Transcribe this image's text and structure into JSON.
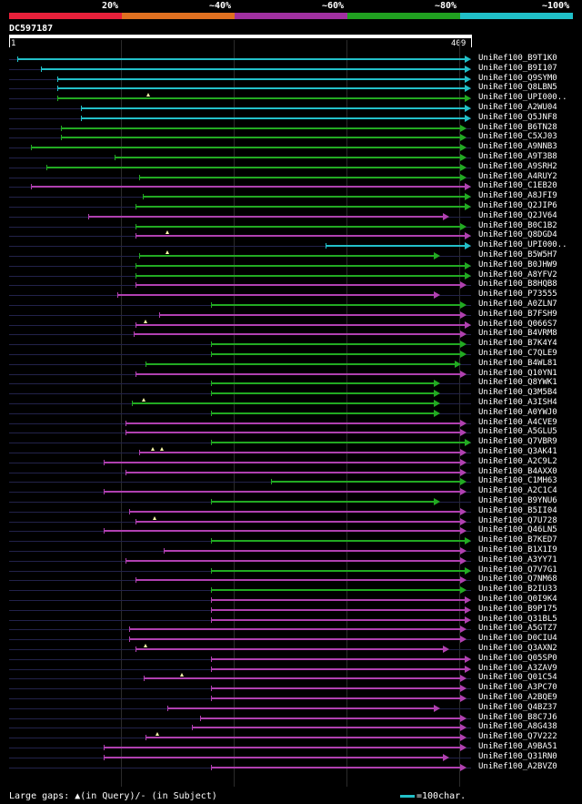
{
  "legend": {
    "segments": [
      {
        "label": "20%",
        "color": "#e8203a"
      },
      {
        "label": "~40%",
        "color": "#e07020"
      },
      {
        "label": "~60%",
        "color": "#a030a0"
      },
      {
        "label": "~80%",
        "color": "#20a020"
      },
      {
        "label": "~100%",
        "color": "#20c0c8"
      }
    ]
  },
  "query": {
    "id": "DC597187",
    "start_label": "1",
    "end_label": "409",
    "length": 409
  },
  "colors": {
    "cyan": "#22c0c8",
    "green": "#22aa22",
    "purple": "#b040b0",
    "dash": "#22224a"
  },
  "hits": [
    {
      "name": "UniRef100_B9T1K0",
      "start": 7,
      "end": 409,
      "color": "cyan"
    },
    {
      "name": "UniRef100_B9I107",
      "start": 28,
      "end": 409,
      "color": "cyan"
    },
    {
      "name": "UniRef100_Q9SYM0",
      "start": 43,
      "end": 409,
      "color": "cyan"
    },
    {
      "name": "UniRef100_Q8LBN5",
      "start": 43,
      "end": 409,
      "color": "cyan"
    },
    {
      "name": "UniRef100_UPI000..",
      "start": 43,
      "end": 409,
      "color": "green",
      "gaps": [
        123
      ]
    },
    {
      "name": "UniRef100_A2WU04",
      "start": 64,
      "end": 409,
      "color": "cyan"
    },
    {
      "name": "UniRef100_Q5JNF8",
      "start": 64,
      "end": 409,
      "color": "cyan"
    },
    {
      "name": "UniRef100_B6TN28",
      "start": 46,
      "end": 405,
      "color": "green"
    },
    {
      "name": "UniRef100_C5XJ03",
      "start": 46,
      "end": 405,
      "color": "green"
    },
    {
      "name": "UniRef100_A9NNB3",
      "start": 19,
      "end": 405,
      "color": "green"
    },
    {
      "name": "UniRef100_A9T3B8",
      "start": 93,
      "end": 405,
      "color": "green"
    },
    {
      "name": "UniRef100_A9SRH2",
      "start": 33,
      "end": 405,
      "color": "green"
    },
    {
      "name": "UniRef100_A4RUY2",
      "start": 115,
      "end": 405,
      "color": "green"
    },
    {
      "name": "UniRef100_C1EB20",
      "start": 19,
      "end": 409,
      "color": "purple"
    },
    {
      "name": "UniRef100_A8JFI9",
      "start": 118,
      "end": 409,
      "color": "green"
    },
    {
      "name": "UniRef100_Q2JIP6",
      "start": 112,
      "end": 409,
      "color": "green"
    },
    {
      "name": "UniRef100_Q2JV64",
      "start": 70,
      "end": 390,
      "color": "purple"
    },
    {
      "name": "UniRef100_B0C1B2",
      "start": 112,
      "end": 405,
      "color": "green"
    },
    {
      "name": "UniRef100_Q8DGD4",
      "start": 112,
      "end": 409,
      "color": "purple",
      "gaps": [
        140
      ]
    },
    {
      "name": "UniRef100_UPI000..",
      "start": 280,
      "end": 409,
      "color": "cyan"
    },
    {
      "name": "UniRef100_B5W5H7",
      "start": 115,
      "end": 382,
      "color": "green",
      "gaps": [
        140
      ]
    },
    {
      "name": "UniRef100_B0JHW9",
      "start": 112,
      "end": 409,
      "color": "green"
    },
    {
      "name": "UniRef100_A8YFV2",
      "start": 112,
      "end": 409,
      "color": "green"
    },
    {
      "name": "UniRef100_B8HQB8",
      "start": 112,
      "end": 405,
      "color": "purple"
    },
    {
      "name": "UniRef100_P73555",
      "start": 96,
      "end": 382,
      "color": "purple"
    },
    {
      "name": "UniRef100_A0ZLN7",
      "start": 179,
      "end": 405,
      "color": "green"
    },
    {
      "name": "UniRef100_B7FSH9",
      "start": 133,
      "end": 405,
      "color": "purple"
    },
    {
      "name": "UniRef100_Q066S7",
      "start": 112,
      "end": 409,
      "color": "purple",
      "gaps": [
        121
      ]
    },
    {
      "name": "UniRef100_B4VRM8",
      "start": 110,
      "end": 405,
      "color": "purple"
    },
    {
      "name": "UniRef100_B7K4Y4",
      "start": 179,
      "end": 405,
      "color": "green"
    },
    {
      "name": "UniRef100_C7QLE9",
      "start": 179,
      "end": 405,
      "color": "green"
    },
    {
      "name": "UniRef100_B4WL81",
      "start": 121,
      "end": 400,
      "color": "green"
    },
    {
      "name": "UniRef100_Q10YN1",
      "start": 112,
      "end": 405,
      "color": "purple"
    },
    {
      "name": "UniRef100_Q8YWK1",
      "start": 179,
      "end": 382,
      "color": "green"
    },
    {
      "name": "UniRef100_Q3M5B4",
      "start": 179,
      "end": 382,
      "color": "green"
    },
    {
      "name": "UniRef100_A3ISH4",
      "start": 109,
      "end": 382,
      "color": "green",
      "gaps": [
        119
      ]
    },
    {
      "name": "UniRef100_A0YWJ0",
      "start": 179,
      "end": 382,
      "color": "green"
    },
    {
      "name": "UniRef100_A4CVE9",
      "start": 103,
      "end": 405,
      "color": "purple"
    },
    {
      "name": "UniRef100_A5GLU5",
      "start": 103,
      "end": 405,
      "color": "purple"
    },
    {
      "name": "UniRef100_Q7VBR9",
      "start": 179,
      "end": 409,
      "color": "green"
    },
    {
      "name": "UniRef100_Q3AK41",
      "start": 115,
      "end": 405,
      "color": "purple",
      "gaps": [
        127,
        135
      ]
    },
    {
      "name": "UniRef100_A2C9L2",
      "start": 84,
      "end": 405,
      "color": "purple"
    },
    {
      "name": "UniRef100_B4AXX0",
      "start": 103,
      "end": 405,
      "color": "purple"
    },
    {
      "name": "UniRef100_C1MH63",
      "start": 232,
      "end": 405,
      "color": "green"
    },
    {
      "name": "UniRef100_A2C1C4",
      "start": 84,
      "end": 405,
      "color": "purple"
    },
    {
      "name": "UniRef100_B9YNU6",
      "start": 179,
      "end": 382,
      "color": "green"
    },
    {
      "name": "UniRef100_B5II04",
      "start": 106,
      "end": 405,
      "color": "purple"
    },
    {
      "name": "UniRef100_Q7U728",
      "start": 112,
      "end": 405,
      "color": "purple",
      "gaps": [
        129
      ]
    },
    {
      "name": "UniRef100_Q46LN5",
      "start": 84,
      "end": 405,
      "color": "purple"
    },
    {
      "name": "UniRef100_B7KED7",
      "start": 179,
      "end": 409,
      "color": "green"
    },
    {
      "name": "UniRef100_B1X1I9",
      "start": 137,
      "end": 405,
      "color": "purple"
    },
    {
      "name": "UniRef100_A3YY71",
      "start": 103,
      "end": 405,
      "color": "purple"
    },
    {
      "name": "UniRef100_Q7V7G1",
      "start": 179,
      "end": 409,
      "color": "green"
    },
    {
      "name": "UniRef100_Q7NM68",
      "start": 112,
      "end": 405,
      "color": "purple"
    },
    {
      "name": "UniRef100_B2IU33",
      "start": 179,
      "end": 405,
      "color": "green"
    },
    {
      "name": "UniRef100_Q0I9K4",
      "start": 179,
      "end": 409,
      "color": "purple"
    },
    {
      "name": "UniRef100_B9P175",
      "start": 179,
      "end": 409,
      "color": "purple"
    },
    {
      "name": "UniRef100_Q31BL5",
      "start": 179,
      "end": 409,
      "color": "purple"
    },
    {
      "name": "UniRef100_A5GTZ7",
      "start": 106,
      "end": 405,
      "color": "purple"
    },
    {
      "name": "UniRef100_D0CIU4",
      "start": 106,
      "end": 405,
      "color": "purple"
    },
    {
      "name": "UniRef100_Q3AXN2",
      "start": 112,
      "end": 390,
      "color": "purple",
      "gaps": [
        121
      ]
    },
    {
      "name": "UniRef100_Q05SP0",
      "start": 179,
      "end": 409,
      "color": "purple"
    },
    {
      "name": "UniRef100_A3ZAV9",
      "start": 179,
      "end": 409,
      "color": "purple"
    },
    {
      "name": "UniRef100_Q01C54",
      "start": 119,
      "end": 405,
      "color": "purple",
      "gaps": [
        153
      ]
    },
    {
      "name": "UniRef100_A3PC70",
      "start": 179,
      "end": 405,
      "color": "purple"
    },
    {
      "name": "UniRef100_A2BQE9",
      "start": 179,
      "end": 405,
      "color": "purple"
    },
    {
      "name": "UniRef100_Q4BZ37",
      "start": 140,
      "end": 382,
      "color": "purple"
    },
    {
      "name": "UniRef100_B8C7J6",
      "start": 169,
      "end": 405,
      "color": "purple"
    },
    {
      "name": "UniRef100_A8G438",
      "start": 162,
      "end": 405,
      "color": "purple"
    },
    {
      "name": "UniRef100_Q7V222",
      "start": 121,
      "end": 405,
      "color": "purple",
      "gaps": [
        131
      ]
    },
    {
      "name": "UniRef100_A9BA51",
      "start": 84,
      "end": 405,
      "color": "purple"
    },
    {
      "name": "UniRef100_Q31RN0",
      "start": 84,
      "end": 390,
      "color": "purple"
    },
    {
      "name": "UniRef100_A2BVZ0",
      "start": 179,
      "end": 405,
      "color": "purple"
    }
  ],
  "footer": {
    "text": "Large gaps: ▲(in Query)/- (in Subject)"
  },
  "scale": {
    "text": "=100char."
  }
}
